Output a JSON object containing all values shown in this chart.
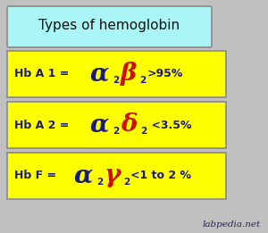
{
  "title": "Types of hemoglobin",
  "title_bg": "#aaf5f5",
  "background_color": "#c0c0c0",
  "box_color": "#ffff00",
  "watermark": "labpedia.net",
  "rows": [
    {
      "prefix": "Hb A 1 = ",
      "greek1": "α",
      "sub1": "2",
      "greek2": "β",
      "sub2": "2",
      "suffix": ">95%",
      "prefix_color": "#1a1a7a",
      "greek1_color": "#1a1a7a",
      "greek2_color": "#cc1100",
      "sub_color": "#1a1a7a",
      "suffix_color": "#1a1a7a"
    },
    {
      "prefix": "Hb A 2 = ",
      "greek1": "α",
      "sub1": "2",
      "greek2": "δ",
      "sub2": "2",
      "suffix": " <3.5%",
      "prefix_color": "#1a1a7a",
      "greek1_color": "#1a1a7a",
      "greek2_color": "#cc1100",
      "sub_color": "#1a1a7a",
      "suffix_color": "#1a1a7a"
    },
    {
      "prefix": "Hb F = ",
      "greek1": "α",
      "sub1": "2",
      "greek2": "γ",
      "sub2": "2",
      "suffix": "<1 to 2 %",
      "prefix_color": "#1a1a7a",
      "greek1_color": "#1a1a7a",
      "greek2_color": "#cc1100",
      "sub_color": "#1a1a7a",
      "suffix_color": "#1a1a7a"
    }
  ],
  "title_fontsize": 11,
  "prefix_fontsize": 9,
  "greek_fontsize": 20,
  "sub_fontsize": 7.5,
  "suffix_fontsize": 9
}
